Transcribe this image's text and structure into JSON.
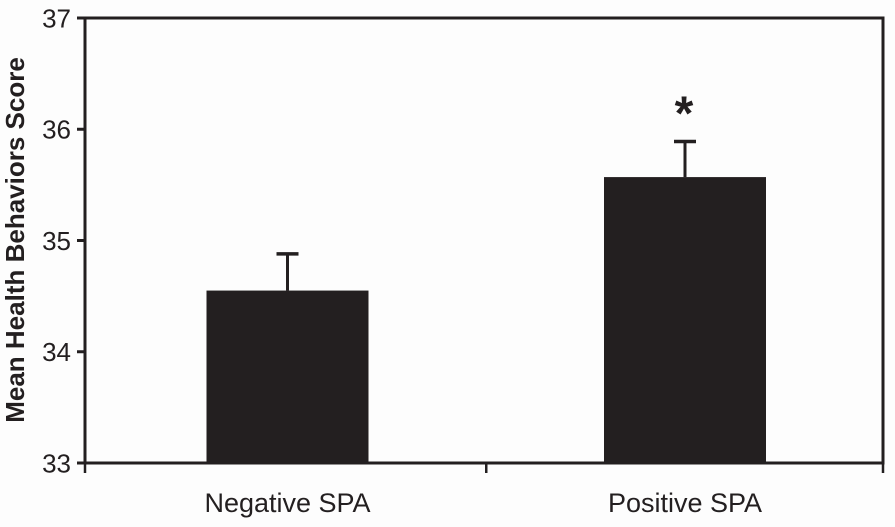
{
  "chart_data": {
    "type": "bar",
    "ylabel": "Mean Health Behaviors Score",
    "xlabel": "",
    "categories": [
      "Negative SPA",
      "Positive SPA"
    ],
    "values": [
      34.55,
      35.57
    ],
    "error_upper": [
      0.33,
      0.32
    ],
    "annotations": [
      {
        "category": "Positive SPA",
        "text": "*"
      }
    ],
    "ylim": [
      33,
      37
    ],
    "yticks": [
      33,
      34,
      35,
      36,
      37
    ],
    "grid": false,
    "legend": null,
    "bar_color": "#231f20",
    "axis_color": "#231f20",
    "text_color": "#231f20",
    "background_color": "#fdfdfd"
  }
}
